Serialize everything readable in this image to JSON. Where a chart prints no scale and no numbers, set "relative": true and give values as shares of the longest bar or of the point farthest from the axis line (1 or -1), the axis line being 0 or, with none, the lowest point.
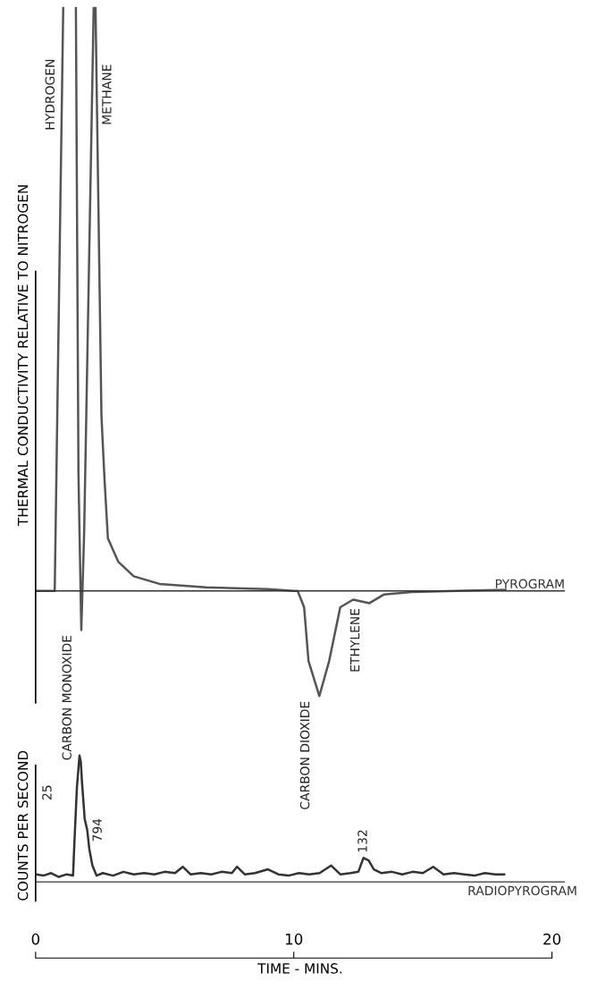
{
  "chart_data": [
    {
      "type": "line",
      "relative": true,
      "ylabel": "THERMAL CONDUCTIVITY RELATIVE TO NITROGEN",
      "xlim": [
        0,
        20.5
      ],
      "tick_labels": false,
      "series": [
        {
          "name": "PYROGRAM",
          "color": "#555555",
          "x": [
            0,
            0.74,
            1.07,
            1.3,
            1.56,
            1.66,
            1.77,
            1.88,
            2.25,
            2.32,
            2.55,
            2.67,
            2.8,
            3.2,
            3.8,
            4.8,
            6.6,
            9.0,
            10.0,
            10.15,
            10.4,
            10.57,
            10.99,
            11.37,
            11.8,
            12.3,
            12.93,
            13.5,
            14.56,
            18.2
          ],
          "values": [
            0,
            0,
            1,
            null,
            1,
            0.2,
            -0.067,
            0.1,
            1,
            1,
            0.3,
            0.19,
            0.09,
            0.05,
            0.025,
            0.012,
            0.006,
            0.003,
            0,
            0,
            -0.028,
            -0.12,
            -0.18,
            -0.12,
            -0.028,
            -0.015,
            -0.021,
            -0.006,
            -0.002,
            0.002
          ]
        }
      ],
      "annotations": [
        {
          "text": "HYDROGEN",
          "x": 1.02,
          "y": 0.85
        },
        {
          "text": "METHANE",
          "x": 2.37,
          "y": 0.85
        },
        {
          "text": "CARBON MONOXIDE",
          "x": 1.77,
          "y": -0.067
        },
        {
          "text": "CARBON DIOXIDE",
          "x": 10.99,
          "y": -0.18
        },
        {
          "text": "ETHYLENE",
          "x": 12.93,
          "y": -0.021
        }
      ]
    },
    {
      "type": "line",
      "relative": true,
      "ylabel": "COUNTS PER SECOND",
      "xlabel": "TIME - MINS.",
      "xlim": [
        0,
        20.5
      ],
      "xticks": [
        0,
        10,
        20
      ],
      "tick_labels": "x",
      "series": [
        {
          "name": "RADIOPYROGRAM",
          "color": "#333333",
          "x": [
            0,
            0.3,
            0.6,
            0.9,
            1.2,
            1.45,
            1.5,
            1.6,
            1.7,
            1.75,
            1.8,
            1.9,
            2.0,
            2.08,
            2.2,
            2.36,
            2.6,
            3.0,
            3.4,
            3.8,
            4.2,
            4.6,
            5.0,
            5.4,
            5.7,
            6.0,
            6.4,
            6.8,
            7.2,
            7.6,
            7.8,
            8.1,
            8.5,
            9.0,
            9.4,
            9.8,
            10.2,
            10.6,
            11.0,
            11.45,
            11.8,
            12.2,
            12.5,
            12.7,
            12.9,
            13.1,
            13.4,
            13.8,
            14.2,
            14.6,
            15.0,
            15.4,
            15.8,
            16.2,
            16.6,
            17.0,
            17.4,
            17.8,
            18.15
          ],
          "values": [
            0.06,
            0.05,
            0.07,
            0.04,
            0.06,
            0.05,
            0.3,
            0.75,
            1.0,
            0.95,
            0.78,
            0.5,
            0.41,
            0.26,
            0.13,
            0.05,
            0.07,
            0.05,
            0.08,
            0.06,
            0.07,
            0.06,
            0.08,
            0.07,
            0.12,
            0.06,
            0.07,
            0.06,
            0.08,
            0.07,
            0.12,
            0.06,
            0.07,
            0.1,
            0.06,
            0.05,
            0.07,
            0.06,
            0.07,
            0.13,
            0.06,
            0.07,
            0.08,
            0.19,
            0.17,
            0.1,
            0.07,
            0.08,
            0.06,
            0.08,
            0.07,
            0.12,
            0.06,
            0.07,
            0.06,
            0.05,
            0.07,
            0.06,
            0.06
          ]
        }
      ],
      "annotations": [
        "25",
        {
          "text": "794",
          "x": 2.0,
          "y": 0.41
        },
        {
          "text": "132",
          "x": 12.7,
          "y": 0.19
        }
      ]
    }
  ]
}
